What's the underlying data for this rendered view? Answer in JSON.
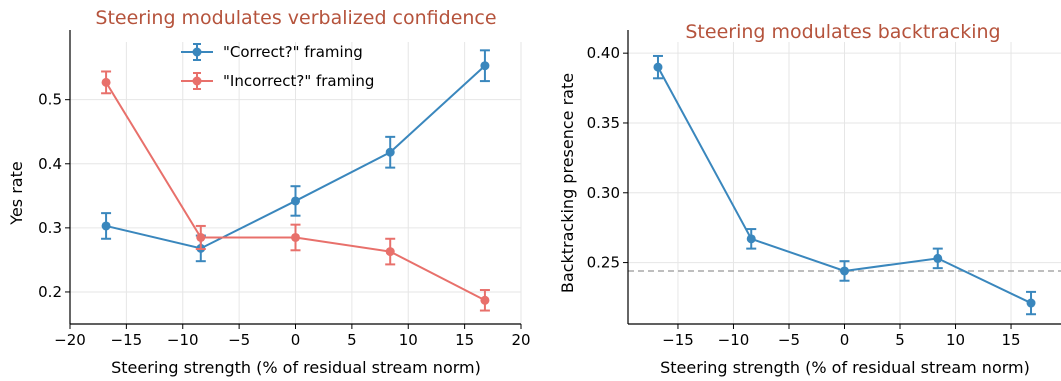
{
  "chart_data": [
    {
      "type": "line",
      "title": "Steering modulates verbalized confidence",
      "title_color": "#b5533c",
      "xlabel": "Steering strength (% of residual stream norm)",
      "ylabel": "Yes rate",
      "xlim": [
        -20,
        20
      ],
      "ylim": [
        0.15,
        0.59
      ],
      "xticks": [
        -20,
        -15,
        -10,
        -5,
        0,
        5,
        10,
        15,
        20
      ],
      "yticks": [
        0.2,
        0.3,
        0.4,
        0.5
      ],
      "grid": true,
      "legend": "top-center",
      "series": [
        {
          "name": "\"Correct?\" framing",
          "color": "#3a87bd",
          "x": [
            -16.8,
            -8.4,
            0,
            8.4,
            16.8
          ],
          "y": [
            0.303,
            0.268,
            0.342,
            0.418,
            0.553
          ],
          "err": [
            0.02,
            0.02,
            0.023,
            0.024,
            0.024
          ]
        },
        {
          "name": "\"Incorrect?\" framing",
          "color": "#e8706b",
          "x": [
            -16.8,
            -8.4,
            0,
            8.4,
            16.8
          ],
          "y": [
            0.527,
            0.285,
            0.285,
            0.263,
            0.187
          ],
          "err": [
            0.017,
            0.018,
            0.02,
            0.02,
            0.016
          ]
        }
      ]
    },
    {
      "type": "line",
      "title": "Steering modulates backtracking",
      "title_color": "#b5533c",
      "xlabel": "Steering strength (% of residual stream norm)",
      "ylabel": "Backtracking presence rate",
      "xlim": [
        -19.5,
        19.5
      ],
      "ylim": [
        0.206,
        0.408
      ],
      "xticks": [
        -15,
        -10,
        -5,
        0,
        5,
        10,
        15
      ],
      "yticks": [
        0.25,
        0.3,
        0.35,
        0.4
      ],
      "grid": true,
      "baseline": 0.244,
      "series": [
        {
          "color": "#3a87bd",
          "x": [
            -16.8,
            -8.4,
            0,
            8.4,
            16.8
          ],
          "y": [
            0.39,
            0.267,
            0.244,
            0.253,
            0.221
          ],
          "err": [
            0.008,
            0.007,
            0.007,
            0.007,
            0.008
          ]
        }
      ]
    }
  ]
}
